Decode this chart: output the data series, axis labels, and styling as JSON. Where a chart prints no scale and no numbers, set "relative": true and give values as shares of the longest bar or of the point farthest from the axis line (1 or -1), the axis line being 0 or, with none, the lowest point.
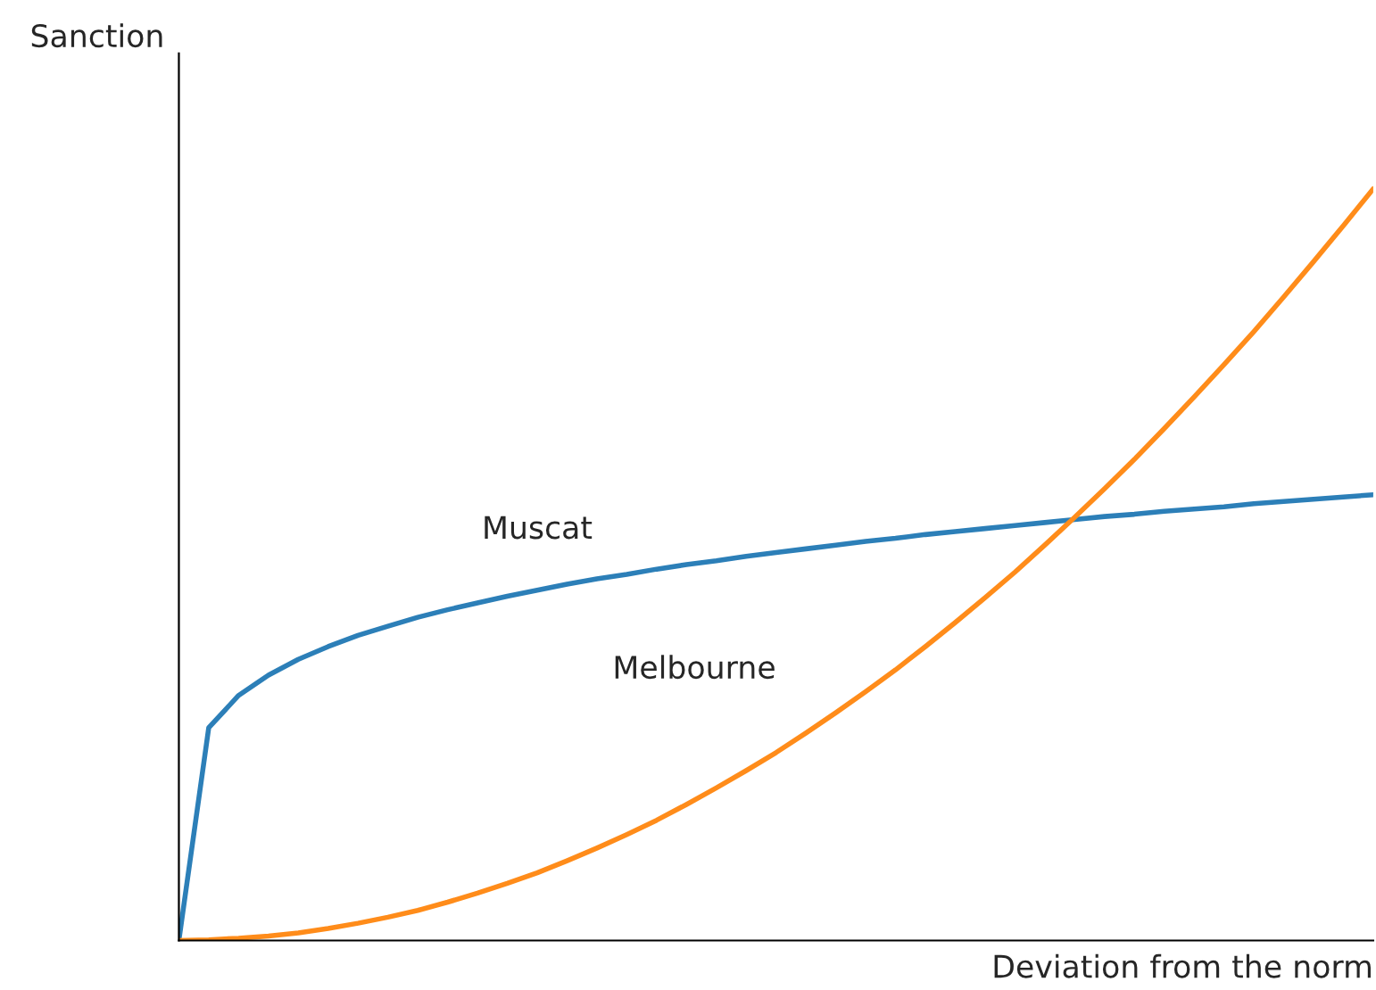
{
  "chart_data": {
    "type": "line",
    "relative": true,
    "xlabel": "Deviation from the norm",
    "ylabel": "Sanction",
    "categories": [
      null,
      null,
      null,
      null,
      null,
      null,
      null,
      null,
      null,
      null,
      null,
      null,
      null,
      null,
      null,
      null,
      null,
      null,
      null,
      null,
      null,
      null,
      null,
      null,
      null,
      null,
      null,
      null,
      null,
      null,
      null,
      null,
      null,
      null,
      null,
      null,
      null,
      null,
      null,
      null,
      null
    ],
    "series": [
      {
        "name": "Muscat",
        "color": "#2c7fb8",
        "values": [
          0,
          0.283,
          0.326,
          0.353,
          0.374,
          0.391,
          0.406,
          0.418,
          0.43,
          0.44,
          0.449,
          0.458,
          0.466,
          0.474,
          0.481,
          0.487,
          0.494,
          0.5,
          0.505,
          0.511,
          0.516,
          0.521,
          0.526,
          0.531,
          0.535,
          0.54,
          0.544,
          0.548,
          0.552,
          0.556,
          0.56,
          0.564,
          0.567,
          0.571,
          0.574,
          0.577,
          0.581,
          0.584,
          0.587,
          0.59,
          0.593
        ]
      },
      {
        "name": "Melbourne",
        "color": "#ff8c1a",
        "values": [
          0,
          0.001,
          0.003,
          0.006,
          0.01,
          0.016,
          0.023,
          0.031,
          0.04,
          0.051,
          0.063,
          0.076,
          0.09,
          0.106,
          0.123,
          0.141,
          0.16,
          0.181,
          0.203,
          0.226,
          0.25,
          0.276,
          0.303,
          0.331,
          0.36,
          0.391,
          0.423,
          0.456,
          0.49,
          0.526,
          0.563,
          0.601,
          0.64,
          0.681,
          0.723,
          0.766,
          0.81,
          0.856,
          0.903,
          0.951,
          1
        ]
      }
    ],
    "grid": false,
    "legend": false
  }
}
